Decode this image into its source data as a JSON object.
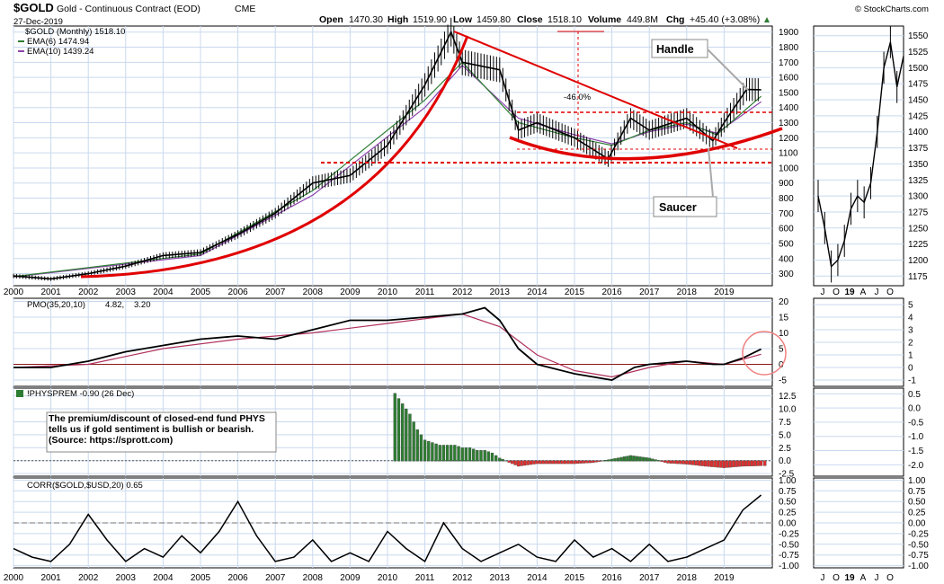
{
  "header": {
    "symbol": "$GOLD",
    "name": "Gold - Continuous Contract (EOD)",
    "exchange": "CME",
    "date": "27-Dec-2019",
    "open_label": "Open",
    "open": "1470.30",
    "high_label": "High",
    "high": "1519.90",
    "low_label": "Low",
    "low": "1459.80",
    "close_label": "Close",
    "close": "1518.10",
    "volume_label": "Volume",
    "volume": "449.8M",
    "chg_label": "Chg",
    "chg": "+45.40 (+3.08%)",
    "chg_icon": "up-triangle-icon",
    "copyright": "© StockCharts.com"
  },
  "colors": {
    "price": "#000000",
    "ema6": "#2e7d32",
    "ema10": "#8e44ad",
    "trend": "#e00000",
    "pmo": "#000000",
    "pmo_signal": "#b0305a",
    "prem_pos": "#2e7d32",
    "prem_neg": "#e03030",
    "grid": "#c9d9ee"
  },
  "legend": {
    "price": "$GOLD (Monthly) 1518.10",
    "ema6": "EMA(6) 1474.94",
    "ema10": "EMA(10) 1439.24",
    "pmo_name": "PMO(35,20,10)",
    "pmo_value": "4.82,",
    "pmo_signal_value": "3.20",
    "prem": "!PHYSPREM -0.90 (26 Dec)",
    "corr": "CORR($GOLD,$USD,20) 0.65"
  },
  "annotations": {
    "handle": "Handle",
    "saucer": "Saucer",
    "drop": "-46.0%",
    "phys_note": "The premium/discount of closed-end fund PHYS tells us if gold sentiment is bullish or bearish. (Source: https://sprott.com)"
  },
  "chart_data": [
    {
      "type": "line",
      "title": "$GOLD (Monthly) 1518.10",
      "x_ticks": [
        "2000",
        "2001",
        "2002",
        "2003",
        "2004",
        "2005",
        "2006",
        "2007",
        "2008",
        "2009",
        "2010",
        "2011",
        "2012",
        "2013",
        "2014",
        "2015",
        "2016",
        "2017",
        "2018",
        "2019"
      ],
      "y_ticks": [
        "300",
        "400",
        "500",
        "600",
        "700",
        "800",
        "900",
        "1000",
        "1100",
        "1200",
        "1300",
        "1400",
        "1500",
        "1600",
        "1700",
        "1800",
        "1900"
      ],
      "ylim": [
        220,
        1940
      ],
      "series": [
        {
          "name": "$GOLD (Monthly)",
          "x": [
            2000,
            2001,
            2002,
            2003,
            2004,
            2005,
            2006,
            2007,
            2008,
            2009,
            2010,
            2011,
            2011.7,
            2012,
            2013,
            2013.5,
            2014,
            2015,
            2015.9,
            2016.5,
            2017,
            2018,
            2018.7,
            2019,
            2019.6,
            2019.99
          ],
          "values": [
            285,
            265,
            300,
            350,
            420,
            440,
            560,
            700,
            900,
            950,
            1150,
            1550,
            1900,
            1700,
            1650,
            1250,
            1300,
            1200,
            1060,
            1330,
            1250,
            1330,
            1180,
            1300,
            1520,
            1518
          ]
        },
        {
          "name": "EMA(6)",
          "x": [
            2000,
            2005,
            2008,
            2011,
            2012,
            2013.5,
            2015,
            2016,
            2017,
            2018,
            2018.8,
            2019.99
          ],
          "values": [
            280,
            430,
            850,
            1450,
            1700,
            1300,
            1200,
            1150,
            1250,
            1300,
            1220,
            1475
          ]
        },
        {
          "name": "EMA(10)",
          "x": [
            2000,
            2005,
            2008,
            2011,
            2012,
            2013.5,
            2015,
            2016,
            2017,
            2018,
            2018.8,
            2019.99
          ],
          "values": [
            278,
            420,
            820,
            1400,
            1680,
            1330,
            1220,
            1160,
            1240,
            1290,
            1230,
            1439
          ]
        }
      ]
    },
    {
      "type": "line",
      "title": "PMO(35,20,10) 4.82, 3.20",
      "y_ticks": [
        "-5",
        "0",
        "5",
        "10",
        "15",
        "20"
      ],
      "ylim": [
        -7,
        21
      ],
      "series": [
        {
          "name": "PMO(35,20,10)",
          "x": [
            2000,
            2001,
            2002,
            2003,
            2004,
            2005,
            2006,
            2007,
            2008,
            2009,
            2010,
            2011,
            2012,
            2012.6,
            2013,
            2013.5,
            2014,
            2015,
            2016,
            2016.6,
            2017,
            2018,
            2018.7,
            2019,
            2019.5,
            2019.99
          ],
          "values": [
            -1,
            -1,
            1,
            4,
            6,
            8,
            9,
            8,
            11,
            14,
            14,
            15,
            16,
            18,
            14,
            5,
            0,
            -3,
            -5,
            -1,
            0,
            1,
            0,
            0,
            2,
            4.82
          ]
        },
        {
          "name": "Signal",
          "x": [
            2000,
            2002,
            2004,
            2006,
            2008,
            2010,
            2012,
            2013,
            2014,
            2015,
            2016,
            2017,
            2018,
            2019,
            2019.99
          ],
          "values": [
            -1,
            0,
            5,
            8,
            10,
            13,
            16,
            12,
            3,
            -2,
            -4,
            -1,
            1,
            0,
            3.2
          ]
        }
      ]
    },
    {
      "type": "bar",
      "title": "!PHYSPREM -0.90 (26 Dec)",
      "y_ticks": [
        "-2.5",
        "0.0",
        "2.5",
        "5.0",
        "7.5",
        "10.0",
        "12.5"
      ],
      "ylim": [
        -3,
        14
      ],
      "x": [
        2010.2,
        2010.4,
        2010.6,
        2010.8,
        2011,
        2011.2,
        2011.4,
        2011.6,
        2011.8,
        2012,
        2012.2,
        2012.4,
        2012.6,
        2012.8,
        2013,
        2013.5,
        2014,
        2014.5,
        2015,
        2015.5,
        2016,
        2016.5,
        2017,
        2017.5,
        2018,
        2018.5,
        2019,
        2019.5,
        2019.99
      ],
      "values": [
        13,
        11,
        9,
        6,
        4,
        3.5,
        3,
        3,
        3,
        2.5,
        2.5,
        2,
        2,
        1.5,
        0.5,
        -1,
        -0.5,
        -0.5,
        -0.5,
        -0.3,
        0.3,
        1,
        0.5,
        -0.4,
        -0.6,
        -1,
        -1.3,
        -1,
        -0.9
      ]
    },
    {
      "type": "line",
      "title": "CORR($GOLD,$USD,20) 0.65",
      "y_ticks": [
        "-1.00",
        "-0.75",
        "-0.50",
        "-0.25",
        "0.00",
        "0.25",
        "0.50",
        "0.75",
        "1.00"
      ],
      "ylim": [
        -1.05,
        1.05
      ],
      "series": [
        {
          "name": "CORR($GOLD,$USD,20)",
          "x": [
            2000,
            2000.5,
            2001,
            2001.5,
            2002,
            2002.5,
            2003,
            2003.5,
            2004,
            2004.5,
            2005,
            2005.5,
            2006,
            2006.5,
            2007,
            2007.5,
            2008,
            2008.5,
            2009,
            2009.5,
            2010,
            2010.5,
            2011,
            2011.5,
            2012,
            2012.5,
            2013,
            2013.5,
            2014,
            2014.5,
            2015,
            2015.5,
            2016,
            2016.5,
            2017,
            2017.5,
            2018,
            2018.5,
            2019,
            2019.5,
            2019.99
          ],
          "values": [
            -0.6,
            -0.8,
            -0.9,
            -0.5,
            0.2,
            -0.4,
            -0.9,
            -0.6,
            -0.8,
            -0.3,
            -0.7,
            -0.2,
            0.5,
            -0.3,
            -0.9,
            -0.8,
            -0.4,
            -0.9,
            -0.7,
            -0.9,
            -0.2,
            -0.6,
            -0.9,
            0.0,
            -0.6,
            -0.9,
            -0.7,
            -0.5,
            -0.8,
            -0.9,
            -0.4,
            -0.8,
            -0.6,
            -0.9,
            -0.5,
            -0.9,
            -0.8,
            -0.6,
            -0.4,
            0.3,
            0.65
          ]
        }
      ]
    },
    {
      "type": "line",
      "title": "$GOLD 2019 detail",
      "x_ticks": [
        "J",
        "O",
        "19",
        "A",
        "J",
        "O"
      ],
      "y_ticks": [
        "1175",
        "1200",
        "1225",
        "1250",
        "1275",
        "1300",
        "1325",
        "1350",
        "1375",
        "1400",
        "1425",
        "1450",
        "1475",
        "1500",
        "1525",
        "1550"
      ],
      "ylim": [
        1160,
        1565
      ],
      "values": [
        1300,
        1250,
        1190,
        1200,
        1230,
        1280,
        1300,
        1290,
        1320,
        1400,
        1500,
        1540,
        1470,
        1518
      ]
    }
  ]
}
